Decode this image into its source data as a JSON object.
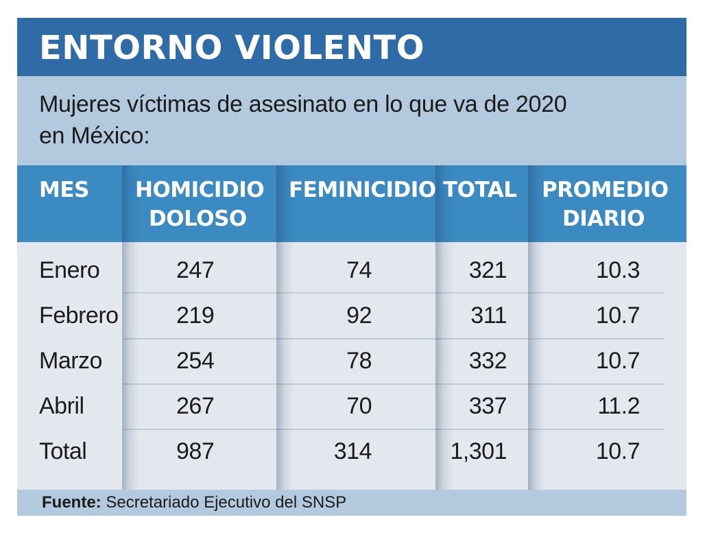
{
  "title": "ENTORNO VIOLENTO",
  "subtitle_line1": "Mujeres víctimas de asesinato en lo que va de 2020",
  "subtitle_line2": "en México:",
  "source_label": "Fuente:",
  "source_text": "Secretariado Ejecutivo del SNSP",
  "colors": {
    "title_bar": "#2f6ca7",
    "subtitle_band": "#b2c9de",
    "table_header": "#3b8ac2",
    "table_body": "#e3e8ee",
    "text": "#1b1b1b"
  },
  "chart_data": {
    "type": "table",
    "title": "ENTORNO VIOLENTO",
    "subtitle": "Mujeres víctimas de asesinato en lo que va de 2020 en México:",
    "columns": [
      {
        "key": "mes",
        "lines": [
          "MES"
        ]
      },
      {
        "key": "homicidio",
        "lines": [
          "HOMICIDIO",
          "DOLOSO"
        ]
      },
      {
        "key": "feminicidio",
        "lines": [
          "FEMINICIDIO"
        ]
      },
      {
        "key": "total",
        "lines": [
          "TOTAL"
        ]
      },
      {
        "key": "promedio",
        "lines": [
          "PROMEDIO",
          "DIARIO"
        ]
      }
    ],
    "rows": [
      {
        "mes": "Enero",
        "homicidio": "247",
        "feminicidio": "74",
        "total": "321",
        "promedio": "10.3"
      },
      {
        "mes": "Febrero",
        "homicidio": "219",
        "feminicidio": "92",
        "total": "311",
        "promedio": "10.7"
      },
      {
        "mes": "Marzo",
        "homicidio": "254",
        "feminicidio": "78",
        "total": "332",
        "promedio": "10.7"
      },
      {
        "mes": "Abril",
        "homicidio": "267",
        "feminicidio": "70",
        "total": "337",
        "promedio": "11.2"
      },
      {
        "mes": "Total",
        "homicidio": "987",
        "feminicidio": "314",
        "total": "1,301",
        "promedio": "10.7"
      }
    ],
    "source": "Fuente: Secretariado Ejecutivo del SNSP"
  }
}
